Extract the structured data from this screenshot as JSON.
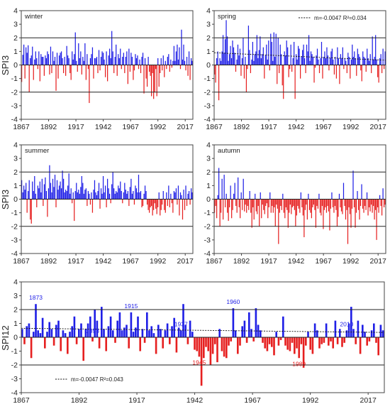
{
  "colors": {
    "positive": "#1f1fe6",
    "negative": "#e62020",
    "frame": "#444444",
    "grid": "#222222",
    "trend": "#111111",
    "annotation_pos": "#1f1fe6",
    "annotation_neg": "#e62020"
  },
  "chart_data": [
    {
      "type": "bar",
      "id": "winter",
      "title": "winter",
      "ylabel": "SPI3",
      "ylim": [
        -4,
        4
      ],
      "yticks": [
        -4,
        -3,
        -2,
        -1,
        0,
        1,
        2,
        3,
        4
      ],
      "xlim": [
        1867,
        2024
      ],
      "xticks": [
        1867,
        1892,
        1917,
        1942,
        1967,
        1992,
        2017
      ],
      "gridlines": [
        -2,
        0,
        2
      ],
      "trend": null,
      "values": [
        -1.25,
        0.75,
        1.5,
        -1.0,
        1.3,
        0.9,
        1.45,
        -2.0,
        0.5,
        0.7,
        1.35,
        -1.1,
        0.4,
        1.0,
        0.5,
        -0.3,
        1.0,
        -1.2,
        0.8,
        0.6,
        0.6,
        -0.8,
        0.7,
        0.5,
        1.0,
        0.8,
        -0.7,
        1.35,
        -0.6,
        1.0,
        0.3,
        0.6,
        -1.9,
        0.9,
        -1.0,
        0.7,
        0.9,
        1.0,
        0.5,
        -0.6,
        0.6,
        -0.8,
        1.4,
        0.7,
        0.5,
        -0.6,
        -1.1,
        1.0,
        0.4,
        0.8,
        2.4,
        0.3,
        -0.5,
        1.6,
        0.5,
        1.0,
        -0.7,
        0.6,
        0.3,
        1.6,
        -1.1,
        0.8,
        -0.3,
        -2.8,
        0.5,
        0.8,
        1.3,
        -1.0,
        0.5,
        0.5,
        0.6,
        -0.6,
        1.1,
        -0.4,
        0.6,
        1.0,
        0.9,
        0.4,
        -0.9,
        1.0,
        -1.2,
        0.7,
        1.2,
        0.5,
        2.5,
        1.0,
        -0.6,
        0.6,
        1.5,
        -0.8,
        0.8,
        0.5,
        1.2,
        -0.3,
        0.6,
        0.9,
        -0.6,
        0.6,
        1.0,
        -1.4,
        1.2,
        -0.5,
        0.9,
        0.6,
        -1.1,
        -0.4,
        0.8,
        0.5,
        0.7,
        -0.3,
        0.4,
        -0.6,
        0.6,
        0.9,
        -2.1,
        0.5,
        -1.0,
        -1.6,
        0.6,
        -0.5,
        -0.8,
        -2.3,
        -0.6,
        -2.5,
        -2.0,
        -0.3,
        -2.3,
        0.5,
        -1.6,
        -0.6,
        0.5,
        -0.4,
        0.7,
        -0.9,
        0.3,
        -0.3,
        0.6,
        0.8,
        -0.5,
        0.4,
        -0.2,
        0.3,
        1.4,
        0.3,
        1.0,
        1.5,
        0.4,
        1.3,
        -0.3,
        2.6,
        0.4,
        1.5,
        0.3,
        -0.4,
        0.6,
        -0.8,
        1.0,
        -1.1,
        0.5,
        0.3
      ]
    },
    {
      "type": "bar",
      "id": "spring",
      "title": "spring",
      "ylabel": "",
      "ylim": [
        -4,
        4
      ],
      "yticks": [
        -4,
        -3,
        -2,
        -1,
        0,
        1,
        2,
        3,
        4
      ],
      "xlim": [
        1867,
        2024
      ],
      "xticks": [
        1867,
        1892,
        1917,
        1942,
        1967,
        1992,
        2017
      ],
      "gridlines": [
        -2,
        0,
        2
      ],
      "trend": {
        "start": 0.9,
        "end": 0.35,
        "label": "m=-0.0047   R²=0.034"
      },
      "values": [
        -0.7,
        -1.3,
        0.5,
        1.0,
        -2.6,
        0.5,
        0.3,
        1.0,
        2.2,
        0.9,
        1.9,
        3.3,
        2.1,
        0.3,
        0.8,
        1.4,
        0.5,
        1.8,
        1.3,
        0.9,
        -0.5,
        0.4,
        1.5,
        0.7,
        1.2,
        -0.8,
        0.5,
        2.0,
        -1.0,
        0.6,
        -2.0,
        -0.3,
        2.9,
        1.1,
        -0.6,
        0.4,
        1.7,
        0.3,
        0.8,
        1.0,
        2.2,
        0.5,
        1.1,
        2.1,
        0.5,
        0.8,
        1.3,
        -1.0,
        0.7,
        1.5,
        0.4,
        1.8,
        -0.4,
        2.3,
        1.7,
        0.3,
        2.4,
        0.6,
        2.3,
        -1.4,
        2.0,
        -0.6,
        1.5,
        0.8,
        -1.5,
        -2.5,
        1.0,
        0.7,
        1.8,
        1.3,
        -0.9,
        -0.3,
        1.5,
        -0.5,
        0.5,
        1.7,
        -2.5,
        0.8,
        0.4,
        1.4,
        1.2,
        -1.0,
        0.6,
        1.1,
        1.5,
        0.5,
        -0.6,
        1.5,
        1.0,
        2.2,
        0.3,
        1.0,
        0.8,
        0.6,
        -1.3,
        -0.2,
        0.7,
        1.2,
        0.4,
        -0.6,
        0.5,
        1.7,
        -1.0,
        0.6,
        1.0,
        0.5,
        1.3,
        0.7,
        -0.4,
        0.5,
        1.0,
        1.2,
        0.4,
        -0.7,
        0.6,
        -1.0,
        1.3,
        0.5,
        -1.4,
        0.8,
        0.5,
        1.3,
        -0.3,
        0.5,
        0.3,
        -0.6,
        0.9,
        0.6,
        -1.0,
        0.4,
        1.5,
        0.6,
        1.0,
        0.5,
        -0.8,
        1.2,
        0.8,
        0.6,
        -0.4,
        -1.2,
        1.0,
        0.6,
        0.5,
        -0.5,
        1.2,
        0.5,
        0.3,
        0.8,
        -0.6,
        2.1,
        0.4,
        0.6,
        2.2,
        0.4,
        -0.9,
        -1.3,
        0.5,
        0.8,
        -0.6,
        1.2,
        -0.3,
        1.0
      ]
    },
    {
      "type": "bar",
      "id": "summer",
      "title": "summer",
      "ylabel": "SPI3",
      "ylim": [
        -4,
        4
      ],
      "yticks": [
        -4,
        -3,
        -2,
        -1,
        0,
        1,
        2,
        3,
        4
      ],
      "xlim": [
        1867,
        2024
      ],
      "xticks": [
        1867,
        1892,
        1917,
        1942,
        1967,
        1992,
        2017
      ],
      "gridlines": [
        -2,
        0,
        2
      ],
      "trend": null,
      "values": [
        1.4,
        0.5,
        1.0,
        0.7,
        1.2,
        -1.0,
        0.6,
        1.4,
        -1.5,
        -1.8,
        1.3,
        0.6,
        1.7,
        0.4,
        -0.6,
        1.0,
        0.8,
        1.3,
        0.5,
        1.5,
        -0.5,
        1.1,
        1.6,
        0.6,
        -1.3,
        0.8,
        2.5,
        1.2,
        0.5,
        1.5,
        0.9,
        1.8,
        -0.6,
        1.4,
        0.7,
        1.0,
        1.3,
        0.8,
        2.1,
        1.5,
        0.5,
        0.7,
        0.6,
        1.0,
        1.9,
        0.4,
        0.8,
        -0.3,
        0.5,
        -1.6,
        0.6,
        1.2,
        0.5,
        0.7,
        0.4,
        0.9,
        1.7,
        1.2,
        0.4,
        0.7,
        0.8,
        -0.5,
        0.6,
        0.4,
        -0.4,
        0.5,
        -1.0,
        0.7,
        1.4,
        0.5,
        0.3,
        0.6,
        1.2,
        -0.7,
        0.8,
        0.4,
        1.7,
        0.5,
        1.0,
        -0.6,
        1.5,
        0.8,
        0.4,
        -0.3,
        1.1,
        2.0,
        0.8,
        0.4,
        0.6,
        0.5,
        1.0,
        0.8,
        1.3,
        0.6,
        -0.3,
        0.5,
        1.2,
        0.7,
        0.4,
        0.6,
        -0.5,
        0.9,
        1.5,
        0.4,
        0.6,
        -0.4,
        1.0,
        0.8,
        0.5,
        1.8,
        0.5,
        0.6,
        -0.6,
        -0.5,
        0.4,
        1.0,
        0.6,
        -0.4,
        -0.8,
        -1.0,
        -0.6,
        -0.5,
        -1.2,
        -0.8,
        -0.3,
        -0.7,
        -1.1,
        -0.6,
        0.5,
        -1.2,
        -0.8,
        -0.4,
        0.6,
        -0.8,
        -1.0,
        0.5,
        -0.5,
        1.0,
        -0.6,
        0.4,
        -0.3,
        -1.0,
        0.6,
        0.5,
        0.8,
        -0.4,
        1.0,
        -1.2,
        0.5,
        0.3,
        -1.5,
        0.7,
        -0.8,
        1.0,
        -0.5,
        0.4,
        0.6,
        -0.4,
        0.8,
        0.5
      ]
    },
    {
      "type": "bar",
      "id": "autumn",
      "title": "autumn",
      "ylabel": "",
      "ylim": [
        -4,
        4
      ],
      "yticks": [
        -4,
        -3,
        -2,
        -1,
        0,
        1,
        2,
        3,
        4
      ],
      "xlim": [
        1867,
        2024
      ],
      "xticks": [
        1867,
        1892,
        1917,
        1942,
        1967,
        1992,
        2017
      ],
      "gridlines": [
        -2,
        0,
        2
      ],
      "trend": null,
      "values": [
        -1.0,
        -0.5,
        -1.4,
        0.3,
        2.3,
        -2.0,
        -1.0,
        1.5,
        -1.5,
        1.8,
        -0.6,
        0.4,
        -1.0,
        -1.6,
        -0.6,
        1.0,
        -1.4,
        -0.8,
        0.4,
        1.2,
        -0.5,
        -1.0,
        1.6,
        -0.6,
        -1.4,
        0.5,
        -0.8,
        1.5,
        -0.9,
        -0.4,
        -1.0,
        -0.5,
        -0.8,
        0.6,
        -1.0,
        -2.1,
        -0.6,
        -1.5,
        0.4,
        -0.9,
        -1.1,
        -0.5,
        -2.0,
        0.5,
        -1.4,
        -0.4,
        -0.8,
        -1.1,
        -0.5,
        -0.3,
        -1.4,
        -0.6,
        0.5,
        -1.0,
        -0.5,
        -1.0,
        -0.6,
        -2.0,
        -0.4,
        -0.7,
        -3.3,
        -1.0,
        -0.5,
        -0.8,
        0.4,
        -1.0,
        -1.4,
        -0.6,
        -0.8,
        -2.1,
        -1.0,
        -0.4,
        -1.1,
        -0.6,
        -0.5,
        -0.8,
        -2.0,
        -1.2,
        -0.5,
        -0.7,
        -1.0,
        0.5,
        -0.6,
        -1.2,
        -2.8,
        -0.8,
        -0.4,
        -1.5,
        0.4,
        -0.8,
        -1.0,
        -1.4,
        -0.6,
        -0.4,
        -0.8,
        -2.1,
        -0.5,
        -0.7,
        0.4,
        -1.0,
        -1.2,
        -0.5,
        -2.2,
        -0.8,
        -0.6,
        -1.0,
        -0.5,
        -0.9,
        -2.3,
        -0.7,
        0.5,
        -0.6,
        -1.0,
        -0.5,
        -0.8,
        -2.0,
        -1.3,
        0.4,
        -0.6,
        -0.9,
        -1.1,
        1.2,
        -0.5,
        -1.5,
        -0.8,
        -3.3,
        -0.6,
        -1.1,
        -2.1,
        -0.7,
        2.1,
        -0.6,
        -2.1,
        -1.0,
        0.6,
        -0.8,
        -1.5,
        -0.5,
        1.1,
        -0.7,
        -1.0,
        -0.5,
        -0.8,
        0.5,
        -1.2,
        -0.6,
        -0.9,
        -0.4,
        -1.0,
        -0.5,
        -1.5,
        -0.8,
        -3.0,
        -0.6,
        -1.0,
        0.3,
        -0.5,
        -1.2,
        0.8,
        -0.6,
        -0.4
      ]
    },
    {
      "type": "bar",
      "id": "annual",
      "title": "",
      "ylabel": "SPI12",
      "ylim": [
        -4,
        4
      ],
      "yticks": [
        -4,
        -3,
        -2,
        -1,
        0,
        1,
        2,
        3,
        4
      ],
      "xlim": [
        1867,
        2024
      ],
      "xticks": [
        1867,
        1892,
        1917,
        1942,
        1967,
        1992,
        2017
      ],
      "gridlines": [
        -2,
        0,
        2
      ],
      "trend": {
        "start": 0.65,
        "end": 0.35,
        "label": "m=-0.0047   R²=0.043"
      },
      "annotations": [
        {
          "year": 1873,
          "label": "1873",
          "sign": "pos"
        },
        {
          "year": 1898,
          "label": "1898",
          "sign": "pos"
        },
        {
          "year": 1915,
          "label": "1915",
          "sign": "pos"
        },
        {
          "year": 1937,
          "label": "1937",
          "sign": "pos"
        },
        {
          "year": 1960,
          "label": "1960",
          "sign": "pos"
        },
        {
          "year": 2010,
          "label": "2010",
          "sign": "pos"
        },
        {
          "year": 1945,
          "label": "1945",
          "sign": "neg"
        },
        {
          "year": 1989,
          "label": "1989",
          "sign": "neg"
        }
      ],
      "values": [
        0.6,
        -0.5,
        0.8,
        1.0,
        -1.5,
        0.4,
        2.4,
        0.5,
        0.3,
        1.4,
        -0.8,
        0.4,
        1.1,
        0.6,
        -0.6,
        0.9,
        1.2,
        -1.0,
        0.5,
        0.3,
        -1.2,
        0.4,
        0.8,
        1.5,
        -0.5,
        0.6,
        1.0,
        -1.7,
        0.6,
        1.0,
        1.5,
        -0.3,
        2.0,
        1.2,
        -0.8,
        2.2,
        0.6,
        -1.0,
        0.8,
        1.5,
        0.5,
        -0.4,
        1.2,
        1.8,
        0.5,
        0.7,
        0.9,
        -0.8,
        1.8,
        0.4,
        0.7,
        1.5,
        -1.0,
        0.6,
        -0.4,
        1.8,
        0.5,
        0.8,
        0.3,
        -1.2,
        0.9,
        0.6,
        -0.8,
        0.5,
        1.0,
        -0.5,
        0.8,
        1.4,
        -1.1,
        0.7,
        0.5,
        2.4,
        0.9,
        -0.5,
        1.2,
        0.4,
        -0.9,
        -1.0,
        -1.4,
        -3.5,
        -1.5,
        -0.7,
        -1.0,
        -2.0,
        -1.2,
        -0.5,
        -1.8,
        0.6,
        -1.0,
        -1.4,
        -1.5,
        -0.6,
        -0.3,
        2.1,
        0.5,
        -1.2,
        -0.6,
        0.8,
        1.2,
        -0.4,
        1.8,
        0.6,
        -0.3,
        2.1,
        0.9,
        0.5,
        -0.4,
        -0.8,
        -1.0,
        -0.5,
        -0.7,
        -1.3,
        0.4,
        -0.6,
        -0.2,
        1.5,
        -0.6,
        -0.9,
        -1.0,
        -0.4,
        -1.2,
        -0.8,
        -1.5,
        -0.5,
        -2.2,
        -0.6,
        0.4,
        -0.9,
        -1.2,
        1.0,
        0.5,
        -0.8,
        -0.5,
        -0.4,
        1.0,
        -0.6,
        -0.3,
        -0.8,
        1.2,
        -0.5,
        0.6,
        -0.7,
        -0.4,
        0.5,
        1.0,
        2.2,
        0.6,
        -0.5,
        1.2,
        -1.2,
        0.9,
        0.4,
        -0.6,
        -0.3,
        0.5,
        1.0,
        -0.4,
        -1.3,
        0.9,
        0.5
      ]
    }
  ]
}
